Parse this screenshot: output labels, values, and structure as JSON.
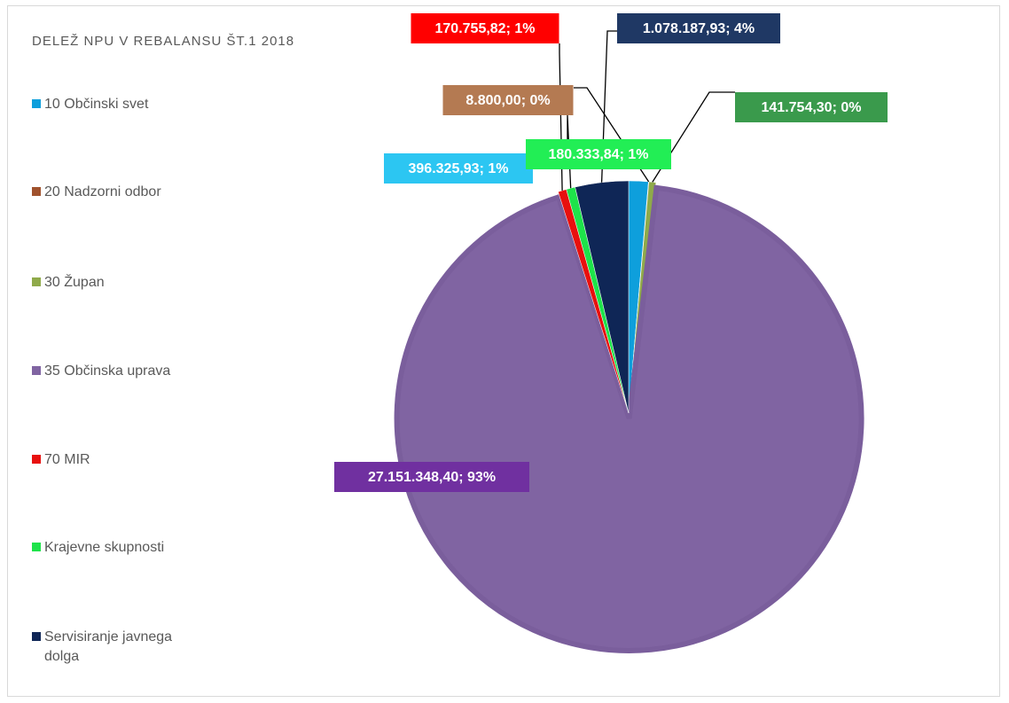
{
  "chart_data": {
    "type": "pie",
    "title": "DELEŽ NPU V REBALANSU ŠT.1 2018",
    "categories": [
      "10 Občinski svet",
      "20 Nadzorni odbor",
      "30 Župan",
      "35 Občinska uprava",
      "70 MIR",
      "Krajevne skupnosti",
      "Servisiranje javnega dolga"
    ],
    "values": [
      396325.93,
      8800.0,
      141754.3,
      27151348.4,
      170755.82,
      180333.84,
      1078187.93
    ],
    "value_labels": [
      "396.325,93; 1%",
      "8.800,00; 0%",
      "141.754,30; 0%",
      "27.151.348,40; 93%",
      "170.755,82; 1%",
      "180.333,84; 1%",
      "1.078.187,93; 4%"
    ],
    "colors": [
      "#0e9fdc",
      "#a0522d",
      "#8faa4a",
      "#8064a2",
      "#e8100e",
      "#1ee34a",
      "#0f2656"
    ],
    "label_colors": [
      "#2cc6f2",
      "#b47a52",
      "#3a9a4c",
      "#7030a0",
      "#ff0000",
      "#22ee55",
      "#1f3864"
    ],
    "legend": "left"
  }
}
